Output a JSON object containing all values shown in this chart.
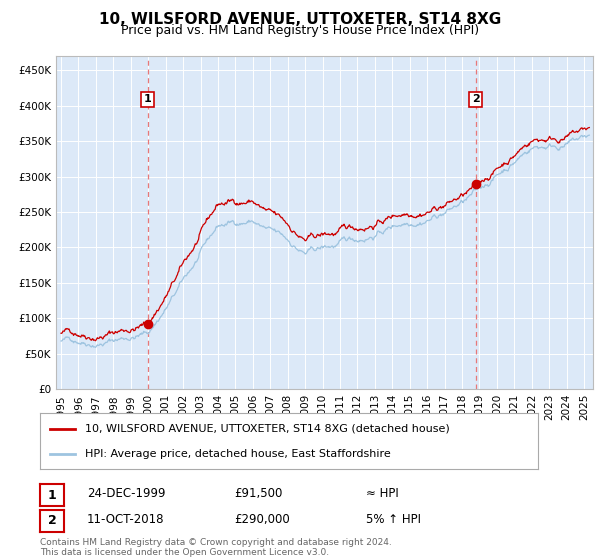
{
  "title": "10, WILSFORD AVENUE, UTTOXETER, ST14 8XG",
  "subtitle": "Price paid vs. HM Land Registry's House Price Index (HPI)",
  "ylabel_ticks": [
    "£0",
    "£50K",
    "£100K",
    "£150K",
    "£200K",
    "£250K",
    "£300K",
    "£350K",
    "£400K",
    "£450K"
  ],
  "ytick_values": [
    0,
    50000,
    100000,
    150000,
    200000,
    250000,
    300000,
    350000,
    400000,
    450000
  ],
  "ylim": [
    0,
    470000
  ],
  "xlim_start": 1994.7,
  "xlim_end": 2025.5,
  "background_color": "#dce9f8",
  "red_line_color": "#cc0000",
  "blue_line_color": "#9ec4e0",
  "marker_color": "#cc0000",
  "vline_color": "#e87878",
  "box_color": "#cc0000",
  "sale1_year": 1999.97,
  "sale1_price": 91500,
  "sale2_year": 2018.78,
  "sale2_price": 290000,
  "legend_label1": "10, WILSFORD AVENUE, UTTOXETER, ST14 8XG (detached house)",
  "legend_label2": "HPI: Average price, detached house, East Staffordshire",
  "table_row1": [
    "1",
    "24-DEC-1999",
    "£91,500",
    "≈ HPI"
  ],
  "table_row2": [
    "2",
    "11-OCT-2018",
    "£290,000",
    "5% ↑ HPI"
  ],
  "footnote": "Contains HM Land Registry data © Crown copyright and database right 2024.\nThis data is licensed under the Open Government Licence v3.0.",
  "title_fontsize": 11,
  "subtitle_fontsize": 9,
  "tick_fontsize": 7.5
}
